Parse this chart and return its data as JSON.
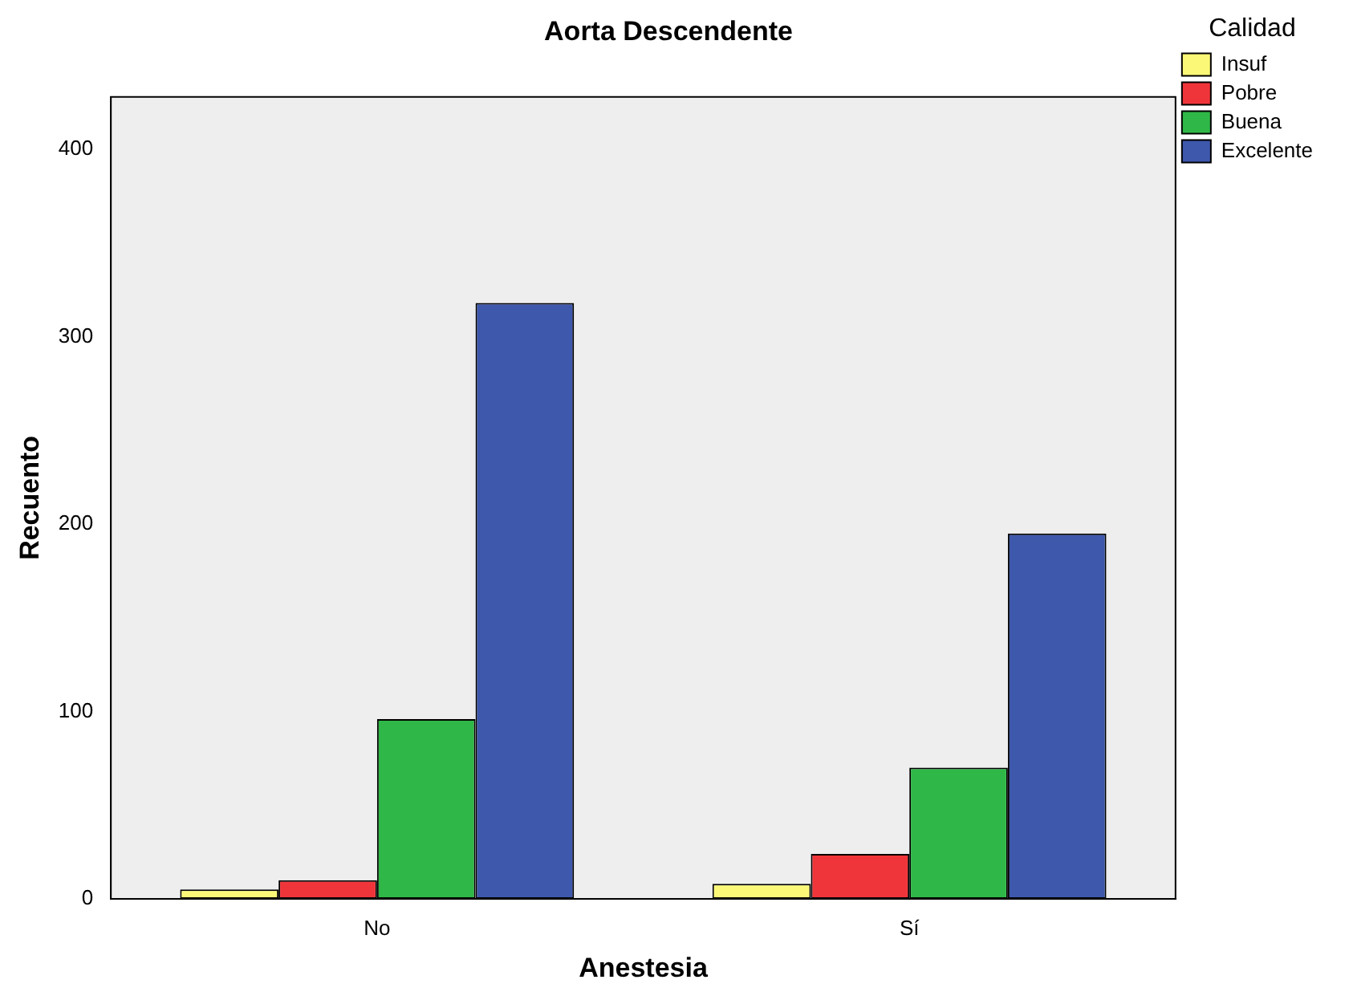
{
  "chart_data": {
    "type": "bar",
    "title": "Aorta Descendente",
    "xlabel": "Anestesia",
    "ylabel": "Recuento",
    "legend_title": "Calidad",
    "categories": [
      "No",
      "Sí"
    ],
    "series": [
      {
        "name": "Insuf",
        "color": "#fbf877",
        "values": [
          5,
          8
        ]
      },
      {
        "name": "Pobre",
        "color": "#f0353a",
        "values": [
          10,
          24
        ]
      },
      {
        "name": "Buena",
        "color": "#2fb847",
        "values": [
          96,
          70
        ]
      },
      {
        "name": "Excelente",
        "color": "#3e58ac",
        "values": [
          318,
          195
        ]
      }
    ],
    "ylim": [
      0,
      428
    ],
    "yticks": [
      0,
      100,
      200,
      300,
      400
    ],
    "grid": false,
    "legend": "top right"
  }
}
